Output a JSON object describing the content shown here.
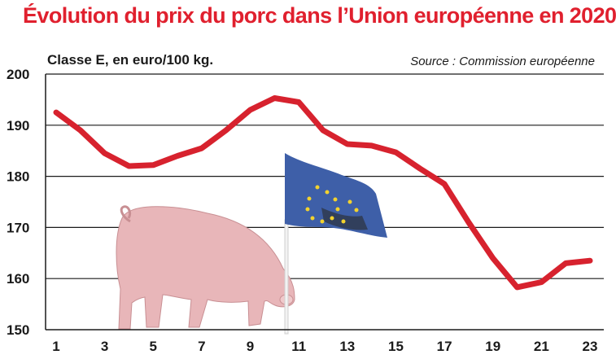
{
  "chart_data": {
    "type": "line",
    "title": "Évolution du prix du porc dans l’Union européenne en 2020",
    "subtitle": "Classe E, en euro/100 kg.",
    "source": "Source : Commission européenne",
    "xlabel": "",
    "ylabel": "",
    "ylim": [
      150,
      200
    ],
    "yticks": [
      "150",
      "160",
      "170",
      "180",
      "190",
      "200"
    ],
    "xticks": [
      "1",
      "3",
      "5",
      "7",
      "9",
      "11",
      "13",
      "15",
      "17",
      "19",
      "21",
      "23"
    ],
    "grid": true,
    "series": [
      {
        "color": "#d7222e",
        "x": [
          1,
          2,
          3,
          4,
          5,
          6,
          7,
          8,
          9,
          10,
          11,
          12,
          13,
          14,
          15,
          16,
          17,
          18,
          19,
          20,
          21,
          22,
          23
        ],
        "values": [
          192.5,
          189,
          184.5,
          182,
          182.2,
          184,
          185.5,
          189,
          193,
          195.3,
          194.5,
          189,
          186.3,
          186,
          184.7,
          181.5,
          178.5,
          171,
          164,
          158.3,
          159.3,
          163,
          163.5
        ]
      }
    ]
  },
  "illustrations": {
    "pig": "pig-illustration",
    "flag": "eu-flag-illustration"
  }
}
